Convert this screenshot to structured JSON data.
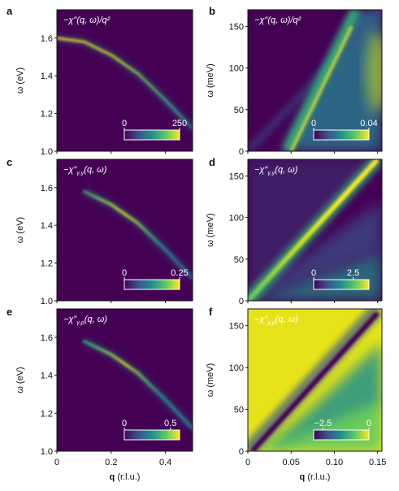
{
  "chart_data": [
    {
      "panel": "a",
      "type": "heatmap",
      "inset_label": "−χ″(q, ω)/q²",
      "xlim": [
        0,
        0.5
      ],
      "ylim": [
        1.0,
        1.75
      ],
      "yticks": [
        "1.0",
        "1.2",
        "1.4",
        "1.6"
      ],
      "ylabel": "ω (eV)",
      "colorbar": {
        "min": 0,
        "max": 250,
        "ticks": [
          "0",
          "250"
        ]
      },
      "dispersion": [
        [
          0,
          1.6
        ],
        [
          0.1,
          1.58
        ],
        [
          0.2,
          1.51
        ],
        [
          0.3,
          1.41
        ],
        [
          0.4,
          1.27
        ],
        [
          0.5,
          1.12
        ]
      ]
    },
    {
      "panel": "b",
      "type": "heatmap",
      "inset_label": "−χ″(q, ω)/q²",
      "xlim": [
        0,
        0.155
      ],
      "ylim": [
        0,
        170
      ],
      "yticks": [
        "0",
        "50",
        "100",
        "150"
      ],
      "ylabel": "ω (meV)",
      "colorbar": {
        "min": 0,
        "max": 0.04,
        "ticks": [
          "0",
          "0.04"
        ]
      }
    },
    {
      "panel": "c",
      "type": "heatmap",
      "inset_label": "−χ″γ,γ(q, ω)",
      "inset_main": "−χ″",
      "inset_sub": "γ,γ",
      "inset_args": "(q, ω)",
      "xlim": [
        0,
        0.5
      ],
      "ylim": [
        1.0,
        1.75
      ],
      "yticks": [
        "1.0",
        "1.2",
        "1.4",
        "1.6"
      ],
      "ylabel": "ω (eV)",
      "colorbar": {
        "min": 0,
        "max": 0.25,
        "ticks": [
          "0",
          "0.25"
        ]
      },
      "dispersion": [
        [
          0.1,
          1.58
        ],
        [
          0.2,
          1.51
        ],
        [
          0.3,
          1.41
        ],
        [
          0.4,
          1.27
        ],
        [
          0.5,
          1.12
        ]
      ]
    },
    {
      "panel": "d",
      "type": "heatmap",
      "inset_label": "−χ″γ,γ(q, ω)",
      "inset_main": "−χ″",
      "inset_sub": "γ,γ",
      "inset_args": "(q, ω)",
      "xlim": [
        0,
        0.155
      ],
      "ylim": [
        0,
        170
      ],
      "yticks": [
        "0",
        "50",
        "100",
        "150"
      ],
      "ylabel": "ω (meV)",
      "colorbar": {
        "min": 0,
        "max": 3.5,
        "ticks": [
          "0",
          "2.5"
        ]
      }
    },
    {
      "panel": "e",
      "type": "heatmap",
      "inset_label": "−χ″γ,ρ(q, ω)",
      "inset_main": "−χ″",
      "inset_sub": "γ,ρ",
      "inset_args": "(q, ω)",
      "xlim": [
        0,
        0.5
      ],
      "ylim": [
        1.0,
        1.75
      ],
      "xticks": [
        "0",
        "0.2",
        "0.4"
      ],
      "yticks": [
        "1.0",
        "1.2",
        "1.4",
        "1.6"
      ],
      "ylabel": "ω (eV)",
      "xlabel_bold": "q",
      "xlabel_rest": " (r.l.u.)",
      "colorbar": {
        "min": 0,
        "max": 0.6,
        "ticks": [
          "0",
          "0.5"
        ]
      },
      "dispersion": [
        [
          0.1,
          1.58
        ],
        [
          0.2,
          1.51
        ],
        [
          0.3,
          1.41
        ],
        [
          0.4,
          1.27
        ],
        [
          0.5,
          1.12
        ]
      ]
    },
    {
      "panel": "f",
      "type": "heatmap",
      "inset_label": "−χ″γ,ρ(q, ω)",
      "inset_main": "−χ″",
      "inset_sub": "γ,ρ",
      "inset_args": "(q, ω)",
      "xlim": [
        0,
        0.155
      ],
      "ylim": [
        0,
        170
      ],
      "xticks": [
        "0",
        "0.05",
        "0.10",
        "0.15"
      ],
      "yticks": [
        "0",
        "50",
        "100",
        "150"
      ],
      "ylabel": "ω (meV)",
      "xlabel_bold": "q",
      "xlabel_rest": " (r.l.u.)",
      "colorbar": {
        "min": -3,
        "max": 0,
        "ticks": [
          "−2.5",
          "0"
        ]
      }
    }
  ],
  "colors": {
    "viridis_dark": "#440154",
    "viridis_blue": "#3b528b",
    "viridis_teal": "#21918c",
    "viridis_green": "#5ec962",
    "viridis_yellow": "#fde725"
  }
}
